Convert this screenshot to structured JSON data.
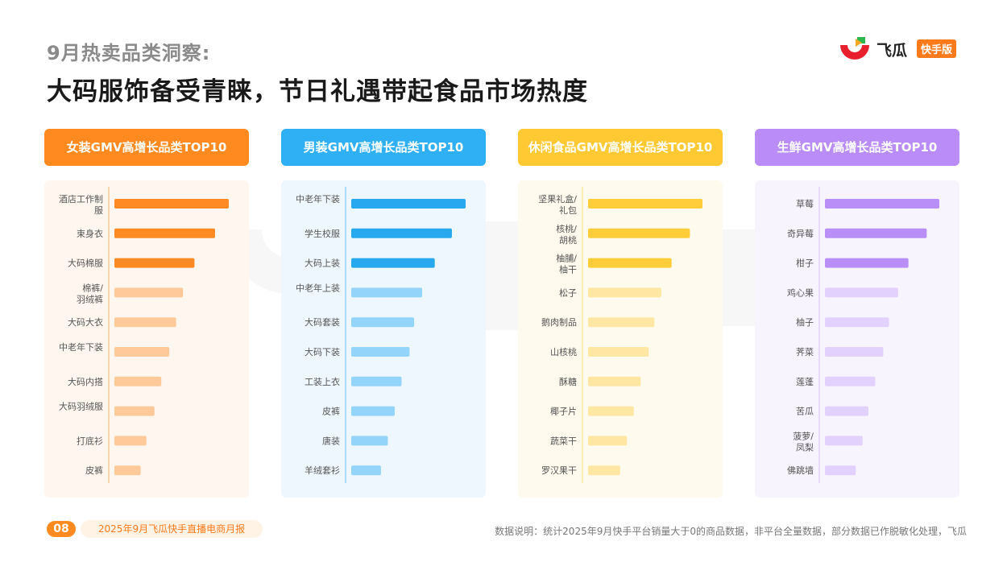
{
  "header": {
    "subtitle": "9月热卖品类洞察:",
    "title": "大码服饰备受青睐，节日礼遇带起食品市场热度"
  },
  "brand": {
    "name": "飞瓜",
    "badge": "快手版"
  },
  "colors": {
    "women": {
      "header": "#ff8a1f",
      "bar_strong": "#ff8a24",
      "bar_light": "#ffc99a",
      "panel": "#fff7ef"
    },
    "men": {
      "header": "#2fb0f5",
      "bar_strong": "#27a8ef",
      "bar_light": "#92d4fa",
      "panel": "#eff7fe"
    },
    "snack": {
      "header": "#ffc933",
      "bar_strong": "#ffcc3a",
      "bar_light": "#ffe6a3",
      "panel": "#fffaee"
    },
    "fresh": {
      "header": "#b98cf7",
      "bar_strong": "#b98ef7",
      "bar_light": "#e2d1fc",
      "panel": "#f8f4fe"
    }
  },
  "chart_data": [
    {
      "type": "bar",
      "orientation": "horizontal",
      "title": "女装GMV高增长品类TOP10",
      "categories": [
        "酒店工作制服",
        "束身衣",
        "大码棉服",
        "棉裤/羽绒裤",
        "大码大衣",
        "中老年下装",
        "大码内搭",
        "大码羽绒服",
        "打底衫",
        "皮裤"
      ],
      "values": [
        10,
        8.8,
        7,
        6,
        5.4,
        4.8,
        4.1,
        3.5,
        2.8,
        2.3
      ],
      "highlight_top": 3
    },
    {
      "type": "bar",
      "orientation": "horizontal",
      "title": "男装GMV高增长品类TOP10",
      "categories": [
        "中老年下装",
        "学生校服",
        "大码上装",
        "中老年上装",
        "大码套装",
        "大码下装",
        "工装上衣",
        "皮裤",
        "唐装",
        "羊绒套衫"
      ],
      "values": [
        10,
        8.8,
        7.3,
        6.2,
        5.5,
        5.1,
        4.4,
        3.8,
        3.2,
        2.6
      ],
      "highlight_top": 3
    },
    {
      "type": "bar",
      "orientation": "horizontal",
      "title": "休闲食品GMV高增长品类TOP10",
      "categories": [
        "坚果礼盒/礼包",
        "核桃/胡桃",
        "柚脯/柚干",
        "松子",
        "鹅肉制品",
        "山核桃",
        "酥糖",
        "椰子片",
        "蔬菜干",
        "罗汉果干"
      ],
      "values": [
        10,
        8.9,
        7.3,
        6.4,
        5.8,
        5.3,
        4.6,
        4,
        3.4,
        2.8
      ],
      "highlight_top": 3
    },
    {
      "type": "bar",
      "orientation": "horizontal",
      "title": "生鲜GMV高增长品类TOP10",
      "categories": [
        "草莓",
        "奇异莓",
        "柑子",
        "鸡心果",
        "柚子",
        "荠菜",
        "莲蓬",
        "苦瓜",
        "菠萝/凤梨",
        "佛跳墙"
      ],
      "values": [
        10,
        8.9,
        7.3,
        6.4,
        5.6,
        5.1,
        4.4,
        3.8,
        3.3,
        2.7
      ],
      "highlight_top": 3
    }
  ],
  "footer": {
    "page_number": "08",
    "report_name": "2025年9月飞瓜快手直播电商月报",
    "note": "数据说明：统计2025年9月快手平台销量大于0的商品数据，非平台全量数据，部分数据已作脱敏化处理，飞瓜"
  }
}
